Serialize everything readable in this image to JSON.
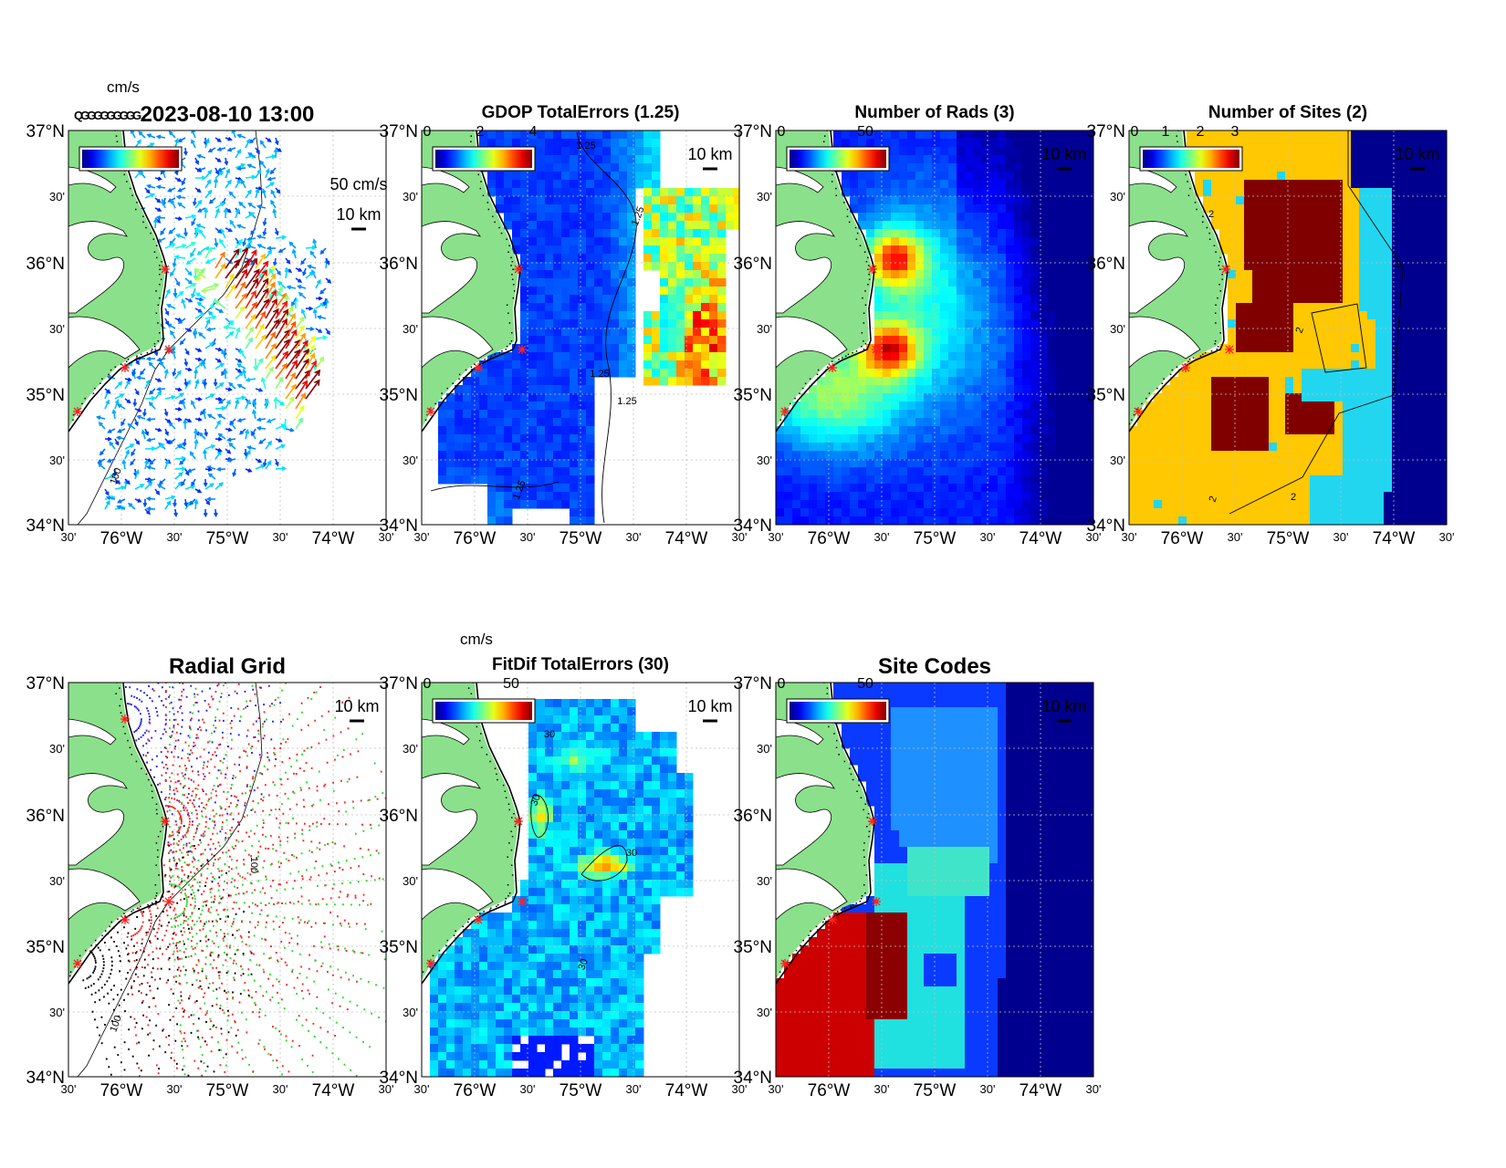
{
  "figure": {
    "colors": {
      "land": "#8be08b",
      "ocean": "#ffffff",
      "site_marker": "#ff2020",
      "grid": "#bfbfbf"
    },
    "lat_labels": [
      "37°N",
      "30'",
      "36°N",
      "30'",
      "35°N",
      "30'",
      "34°N"
    ],
    "lon_labels": [
      "30'",
      "76°W",
      "30'",
      "75°W",
      "30'",
      "74°W",
      "30'"
    ],
    "scale_text": "10 km",
    "panels": [
      {
        "id": "total-vectors",
        "title": "2023-08-10 13:00",
        "title_style": "large",
        "kind": "vectors",
        "colorbar": {
          "unit_label": "cm/s",
          "ticks": [],
          "overprint": "QGGGGGGGGG"
        },
        "reference_vector": "50 cm/s",
        "contour_labels": [
          "100"
        ]
      },
      {
        "id": "gdop-total-errors",
        "title": "GDOP TotalErrors (1.25)",
        "title_style": "small",
        "kind": "gdop",
        "colorbar": {
          "unit_label": "",
          "ticks": [
            "0",
            "2",
            "4"
          ]
        },
        "contour_labels": [
          "1.25",
          "1.25",
          "1.25",
          "1.25",
          "1.25"
        ]
      },
      {
        "id": "number-of-rads",
        "title": "Number of Rads (3)",
        "title_style": "small",
        "kind": "rads",
        "colorbar": {
          "unit_label": "",
          "ticks": [
            "0",
            "50"
          ]
        },
        "contour_labels": []
      },
      {
        "id": "number-of-sites",
        "title": "Number of Sites (2)",
        "title_style": "small",
        "kind": "sites",
        "colorbar": {
          "unit_label": "",
          "ticks": [
            "0",
            "1",
            "2",
            "3"
          ]
        },
        "contour_labels": [
          "2",
          "2",
          "2",
          "2",
          "2"
        ]
      },
      {
        "id": "radial-grid",
        "title": "Radial Grid",
        "title_style": "large",
        "kind": "grid",
        "colorbar": null,
        "contour_labels": [
          "100",
          "100"
        ]
      },
      {
        "id": "fitdif-total-errors",
        "title": "FitDif TotalErrors (30)",
        "title_style": "small",
        "kind": "fitdif",
        "colorbar": {
          "unit_label": "cm/s",
          "ticks": [
            "0",
            "50"
          ]
        },
        "contour_labels": [
          "30",
          "30",
          "30",
          "30"
        ]
      },
      {
        "id": "site-codes",
        "title": "Site Codes",
        "title_style": "large",
        "kind": "codes",
        "colorbar": {
          "unit_label": "",
          "ticks": [
            "0",
            "50"
          ]
        },
        "contour_labels": []
      }
    ]
  }
}
